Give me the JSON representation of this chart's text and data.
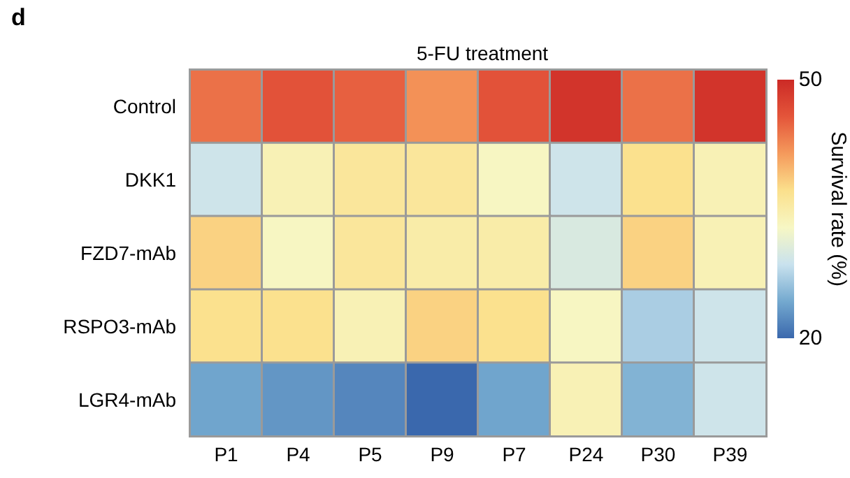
{
  "chart_data": {
    "type": "heatmap",
    "title": "5-FU treatment",
    "clabel": "Survival rate (%)",
    "annotations": [
      "d"
    ],
    "categories": [
      "P1",
      "P4",
      "P5",
      "P9",
      "P7",
      "P24",
      "P30",
      "P39"
    ],
    "y_categories": [
      "Control",
      "DKK1",
      "FZD7-mAb",
      "RSPO3-mAb",
      "LGR4-mAb"
    ],
    "cells": [
      [
        44,
        46,
        45,
        42,
        46,
        49,
        44,
        49
      ],
      [
        29,
        34,
        36,
        36,
        33,
        29,
        37,
        34
      ],
      [
        38,
        33,
        36,
        35,
        35,
        30,
        38,
        34
      ],
      [
        37,
        37,
        34,
        38,
        37,
        33,
        27,
        29
      ],
      [
        24,
        23,
        22,
        20,
        24,
        34,
        25,
        29
      ]
    ],
    "clim": [
      20,
      50
    ],
    "cticks": [
      20,
      50
    ]
  }
}
